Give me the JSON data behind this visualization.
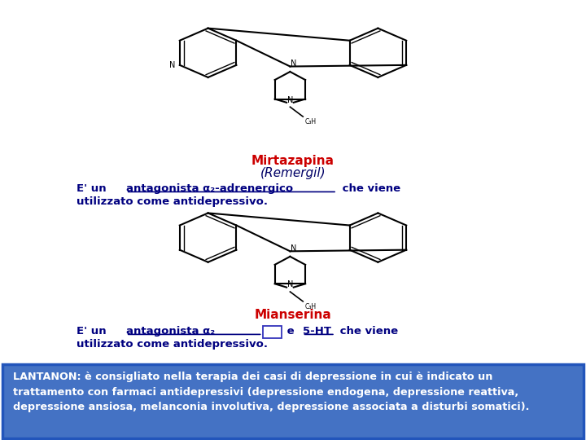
{
  "bg_color": "#ffffff",
  "bottom_box_color": "#4472c4",
  "bottom_box_text_color": "#ffffff",
  "bottom_box_text": "LANTANON: è consigliato nella terapia dei casi di depressione in cui è indicato un\ntrattamento con farmaci antidepressivi (depressione endogena, depressione reattiva,\ndepressione ansiosa, melanconia involutiva, depressione associata a disturbi somatici).",
  "title1_text": "Mirtazapina",
  "title1_color": "#cc0000",
  "subtitle1_text": "(Remergil)",
  "subtitle1_color": "#000066",
  "desc1_color": "#000080",
  "title2_text": "Mianserina",
  "title2_color": "#cc0000",
  "desc2_color": "#000080",
  "figsize": [
    7.2,
    5.4
  ],
  "dpi": 100
}
